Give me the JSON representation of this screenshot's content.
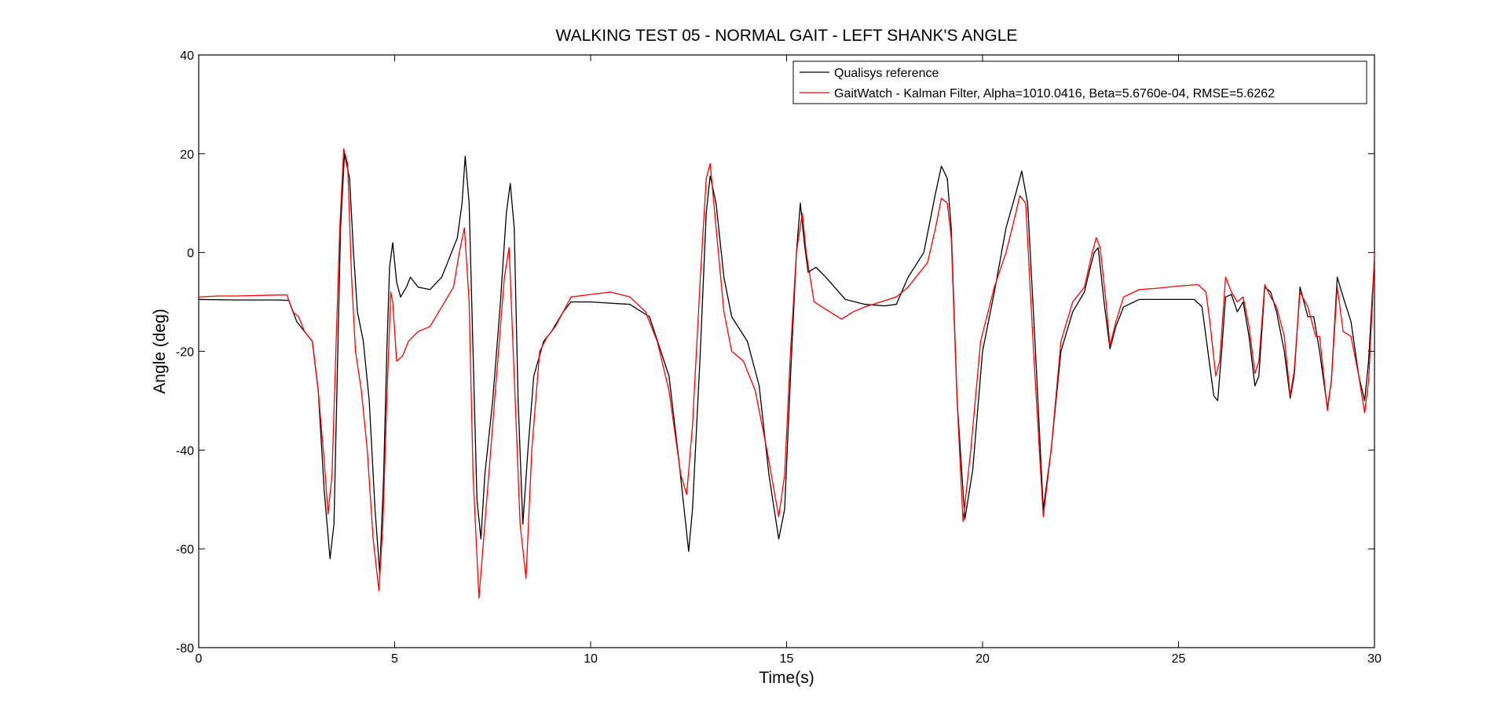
{
  "chart_data": {
    "type": "line",
    "title": "WALKING TEST 05 - NORMAL GAIT - LEFT SHANK'S ANGLE",
    "xlabel": "Time(s)",
    "ylabel": "Angle (deg)",
    "xlim": [
      0,
      30
    ],
    "ylim": [
      -80,
      40
    ],
    "xticks": [
      0,
      5,
      10,
      15,
      20,
      25,
      30
    ],
    "yticks": [
      -80,
      -60,
      -40,
      -20,
      0,
      20,
      40
    ],
    "grid": false,
    "legend_position": "top-right",
    "series": [
      {
        "name": "Qualisys reference",
        "color": "#000000",
        "points": [
          [
            0,
            -9.5
          ],
          [
            1,
            -9.6
          ],
          [
            2,
            -9.6
          ],
          [
            2.3,
            -9.7
          ],
          [
            2.5,
            -14
          ],
          [
            2.7,
            -16
          ],
          [
            2.9,
            -18
          ],
          [
            3.05,
            -28
          ],
          [
            3.2,
            -48
          ],
          [
            3.35,
            -62
          ],
          [
            3.45,
            -55
          ],
          [
            3.55,
            -20
          ],
          [
            3.62,
            5
          ],
          [
            3.72,
            20
          ],
          [
            3.85,
            15
          ],
          [
            3.95,
            0
          ],
          [
            4.05,
            -12
          ],
          [
            4.2,
            -18
          ],
          [
            4.35,
            -30
          ],
          [
            4.5,
            -52
          ],
          [
            4.62,
            -65
          ],
          [
            4.72,
            -45
          ],
          [
            4.8,
            -20
          ],
          [
            4.87,
            -3
          ],
          [
            4.95,
            2
          ],
          [
            5.05,
            -6
          ],
          [
            5.15,
            -9
          ],
          [
            5.3,
            -7
          ],
          [
            5.4,
            -5
          ],
          [
            5.6,
            -7
          ],
          [
            5.9,
            -7.5
          ],
          [
            6.2,
            -5
          ],
          [
            6.45,
            0
          ],
          [
            6.6,
            3
          ],
          [
            6.72,
            10
          ],
          [
            6.8,
            19.5
          ],
          [
            6.9,
            10
          ],
          [
            7.0,
            -20
          ],
          [
            7.1,
            -50
          ],
          [
            7.2,
            -58
          ],
          [
            7.3,
            -45
          ],
          [
            7.5,
            -30
          ],
          [
            7.7,
            -10
          ],
          [
            7.85,
            8
          ],
          [
            7.95,
            14
          ],
          [
            8.05,
            5
          ],
          [
            8.15,
            -30
          ],
          [
            8.27,
            -55
          ],
          [
            8.4,
            -40
          ],
          [
            8.55,
            -25
          ],
          [
            8.8,
            -18
          ],
          [
            9.0,
            -16
          ],
          [
            9.3,
            -12
          ],
          [
            9.5,
            -10
          ],
          [
            10,
            -10
          ],
          [
            11,
            -10.5
          ],
          [
            11.5,
            -13
          ],
          [
            12,
            -25
          ],
          [
            12.25,
            -42
          ],
          [
            12.5,
            -60.5
          ],
          [
            12.6,
            -52
          ],
          [
            12.8,
            -20
          ],
          [
            12.95,
            8
          ],
          [
            13.05,
            15.5
          ],
          [
            13.2,
            10
          ],
          [
            13.4,
            -5
          ],
          [
            13.6,
            -13
          ],
          [
            14.0,
            -18
          ],
          [
            14.3,
            -27
          ],
          [
            14.55,
            -45
          ],
          [
            14.8,
            -58
          ],
          [
            14.95,
            -52
          ],
          [
            15.1,
            -25
          ],
          [
            15.25,
            0
          ],
          [
            15.35,
            10
          ],
          [
            15.45,
            2
          ],
          [
            15.55,
            -4
          ],
          [
            15.75,
            -3
          ],
          [
            16.0,
            -5
          ],
          [
            16.5,
            -9.5
          ],
          [
            17.0,
            -10.5
          ],
          [
            17.5,
            -10.8
          ],
          [
            17.8,
            -10.5
          ],
          [
            18.1,
            -5
          ],
          [
            18.5,
            0
          ],
          [
            18.8,
            12
          ],
          [
            18.95,
            17.5
          ],
          [
            19.1,
            15
          ],
          [
            19.2,
            5
          ],
          [
            19.35,
            -30
          ],
          [
            19.55,
            -54
          ],
          [
            19.75,
            -44
          ],
          [
            20.0,
            -20
          ],
          [
            20.3,
            -8
          ],
          [
            20.6,
            5
          ],
          [
            20.85,
            12
          ],
          [
            21.0,
            16.5
          ],
          [
            21.15,
            10
          ],
          [
            21.35,
            -20
          ],
          [
            21.55,
            -52
          ],
          [
            21.75,
            -40
          ],
          [
            22.0,
            -20
          ],
          [
            22.3,
            -12
          ],
          [
            22.6,
            -8
          ],
          [
            22.75,
            -3
          ],
          [
            22.85,
            0
          ],
          [
            22.95,
            1
          ],
          [
            23.1,
            -10
          ],
          [
            23.25,
            -19.5
          ],
          [
            23.4,
            -15
          ],
          [
            23.6,
            -11
          ],
          [
            24.0,
            -9.5
          ],
          [
            24.5,
            -9.5
          ],
          [
            25.0,
            -9.5
          ],
          [
            25.4,
            -9.5
          ],
          [
            25.6,
            -11
          ],
          [
            25.75,
            -20
          ],
          [
            25.9,
            -29
          ],
          [
            26.0,
            -30
          ],
          [
            26.1,
            -20
          ],
          [
            26.2,
            -9
          ],
          [
            26.35,
            -8.5
          ],
          [
            26.5,
            -12
          ],
          [
            26.65,
            -10
          ],
          [
            26.8,
            -17
          ],
          [
            26.95,
            -27
          ],
          [
            27.05,
            -25
          ],
          [
            27.2,
            -7
          ],
          [
            27.35,
            -8
          ],
          [
            27.5,
            -12
          ],
          [
            27.7,
            -20
          ],
          [
            27.85,
            -29.5
          ],
          [
            27.95,
            -25
          ],
          [
            28.1,
            -7
          ],
          [
            28.3,
            -13
          ],
          [
            28.45,
            -13
          ],
          [
            28.6,
            -20
          ],
          [
            28.8,
            -31.5
          ],
          [
            28.9,
            -26
          ],
          [
            29.05,
            -5
          ],
          [
            29.2,
            -9
          ],
          [
            29.4,
            -14
          ],
          [
            29.6,
            -25
          ],
          [
            29.75,
            -30
          ],
          [
            29.85,
            -22
          ],
          [
            29.95,
            -8
          ],
          [
            30,
            -2
          ]
        ]
      },
      {
        "name": "GaitWatch - Kalman Filter, Alpha=1010.0416, Beta=5.6760e-04, RMSE=5.6262",
        "color": "#ff0000",
        "points": [
          [
            0,
            -9
          ],
          [
            0.5,
            -8.8
          ],
          [
            1,
            -8.8
          ],
          [
            2,
            -8.6
          ],
          [
            2.25,
            -8.6
          ],
          [
            2.4,
            -12
          ],
          [
            2.55,
            -13
          ],
          [
            2.7,
            -16
          ],
          [
            2.9,
            -18
          ],
          [
            3.05,
            -28
          ],
          [
            3.2,
            -42
          ],
          [
            3.3,
            -53
          ],
          [
            3.4,
            -45
          ],
          [
            3.5,
            -20
          ],
          [
            3.6,
            5
          ],
          [
            3.7,
            21
          ],
          [
            3.8,
            18
          ],
          [
            3.9,
            -5
          ],
          [
            4.0,
            -20
          ],
          [
            4.15,
            -28
          ],
          [
            4.3,
            -40
          ],
          [
            4.45,
            -58
          ],
          [
            4.6,
            -68.5
          ],
          [
            4.7,
            -55
          ],
          [
            4.8,
            -30
          ],
          [
            4.9,
            -8
          ],
          [
            4.95,
            -10
          ],
          [
            5.05,
            -22
          ],
          [
            5.2,
            -21
          ],
          [
            5.35,
            -18
          ],
          [
            5.6,
            -16
          ],
          [
            5.9,
            -15
          ],
          [
            6.2,
            -11
          ],
          [
            6.5,
            -7
          ],
          [
            6.65,
            0
          ],
          [
            6.78,
            5
          ],
          [
            6.9,
            -10
          ],
          [
            7.0,
            -45
          ],
          [
            7.15,
            -70
          ],
          [
            7.3,
            -55
          ],
          [
            7.45,
            -40
          ],
          [
            7.6,
            -25
          ],
          [
            7.8,
            -5
          ],
          [
            7.92,
            1
          ],
          [
            8.05,
            -25
          ],
          [
            8.2,
            -55
          ],
          [
            8.35,
            -66
          ],
          [
            8.5,
            -40
          ],
          [
            8.7,
            -20
          ],
          [
            8.9,
            -17
          ],
          [
            9.1,
            -15
          ],
          [
            9.3,
            -12
          ],
          [
            9.5,
            -9
          ],
          [
            10,
            -8.5
          ],
          [
            10.5,
            -8
          ],
          [
            11,
            -9
          ],
          [
            11.4,
            -12
          ],
          [
            11.7,
            -18
          ],
          [
            12.0,
            -28
          ],
          [
            12.3,
            -45
          ],
          [
            12.45,
            -49
          ],
          [
            12.6,
            -35
          ],
          [
            12.8,
            -5
          ],
          [
            12.95,
            15
          ],
          [
            13.05,
            18
          ],
          [
            13.2,
            5
          ],
          [
            13.4,
            -12
          ],
          [
            13.6,
            -20
          ],
          [
            13.9,
            -22
          ],
          [
            14.2,
            -28
          ],
          [
            14.5,
            -40
          ],
          [
            14.8,
            -53.5
          ],
          [
            14.95,
            -45
          ],
          [
            15.1,
            -20
          ],
          [
            15.25,
            0
          ],
          [
            15.4,
            8
          ],
          [
            15.5,
            0
          ],
          [
            15.7,
            -10
          ],
          [
            15.9,
            -11
          ],
          [
            16.1,
            -12
          ],
          [
            16.4,
            -13.5
          ],
          [
            16.7,
            -12
          ],
          [
            17.0,
            -11
          ],
          [
            17.4,
            -10
          ],
          [
            17.8,
            -9
          ],
          [
            18.1,
            -7
          ],
          [
            18.4,
            -4
          ],
          [
            18.6,
            -2
          ],
          [
            18.8,
            5
          ],
          [
            18.95,
            11
          ],
          [
            19.1,
            10
          ],
          [
            19.2,
            3
          ],
          [
            19.35,
            -30
          ],
          [
            19.5,
            -54.5
          ],
          [
            19.7,
            -40
          ],
          [
            19.95,
            -18
          ],
          [
            20.3,
            -7
          ],
          [
            20.6,
            0
          ],
          [
            20.85,
            8
          ],
          [
            20.95,
            11.5
          ],
          [
            21.1,
            10
          ],
          [
            21.3,
            -20
          ],
          [
            21.55,
            -53.5
          ],
          [
            21.75,
            -40
          ],
          [
            22.0,
            -18
          ],
          [
            22.3,
            -10
          ],
          [
            22.6,
            -7
          ],
          [
            22.8,
            0
          ],
          [
            22.9,
            3
          ],
          [
            23.0,
            1
          ],
          [
            23.15,
            -10
          ],
          [
            23.25,
            -19
          ],
          [
            23.4,
            -14
          ],
          [
            23.6,
            -9
          ],
          [
            24.0,
            -7.5
          ],
          [
            24.5,
            -7.2
          ],
          [
            25.0,
            -6.8
          ],
          [
            25.5,
            -6.5
          ],
          [
            25.7,
            -8
          ],
          [
            25.8,
            -14
          ],
          [
            25.95,
            -25
          ],
          [
            26.05,
            -22
          ],
          [
            26.2,
            -5
          ],
          [
            26.35,
            -8
          ],
          [
            26.5,
            -10
          ],
          [
            26.65,
            -9
          ],
          [
            26.8,
            -15
          ],
          [
            26.95,
            -24.5
          ],
          [
            27.05,
            -22
          ],
          [
            27.2,
            -6.5
          ],
          [
            27.35,
            -9
          ],
          [
            27.5,
            -11
          ],
          [
            27.7,
            -17
          ],
          [
            27.85,
            -29
          ],
          [
            27.95,
            -24
          ],
          [
            28.1,
            -8
          ],
          [
            28.3,
            -11
          ],
          [
            28.5,
            -17
          ],
          [
            28.6,
            -17
          ],
          [
            28.8,
            -32
          ],
          [
            28.9,
            -26
          ],
          [
            29.05,
            -7
          ],
          [
            29.2,
            -16
          ],
          [
            29.4,
            -17
          ],
          [
            29.6,
            -25
          ],
          [
            29.75,
            -32.5
          ],
          [
            29.85,
            -26
          ],
          [
            29.95,
            -10
          ],
          [
            30,
            0
          ]
        ]
      }
    ]
  }
}
